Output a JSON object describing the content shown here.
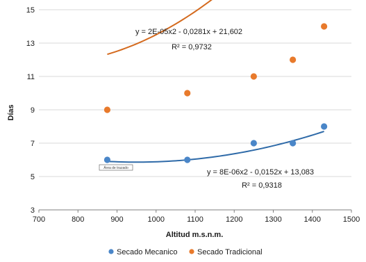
{
  "chart_data": {
    "type": "scatter",
    "xlabel": "Altitud m.s.n.m.",
    "ylabel": "Días",
    "xlim": [
      700,
      1500
    ],
    "ylim": [
      3,
      15
    ],
    "x_ticks": [
      700,
      800,
      900,
      1000,
      1100,
      1200,
      1300,
      1400,
      1500
    ],
    "y_ticks": [
      3,
      5,
      7,
      9,
      11,
      13,
      15
    ],
    "grid": "horizontal",
    "legend_position": "bottom",
    "series": [
      {
        "name": "Secado Mecanico",
        "color": "#4a86c8",
        "x": [
          875,
          1080,
          1250,
          1350,
          1430
        ],
        "y": [
          6,
          6,
          7,
          7,
          8
        ],
        "trendline": {
          "type": "polynomial",
          "coefficients": [
            8e-06,
            -0.0152,
            13.083
          ],
          "color": "#2e6aa8",
          "equation": "y = 8E-06x2 - 0,0152x + 13,083",
          "r2": "R² = 0,9318"
        }
      },
      {
        "name": "Secado Tradicional",
        "color": "#e87a2c",
        "x": [
          875,
          1080,
          1250,
          1350,
          1430
        ],
        "y": [
          9,
          10,
          11,
          12,
          14
        ],
        "trendline": {
          "type": "polynomial",
          "coefficients": [
            2e-05,
            -0.0281,
            21.602
          ],
          "color": "#d46a1e",
          "equation": "y = 2E-05x2 - 0,0281x + 21,602",
          "r2": "R² = 0,9732"
        }
      }
    ],
    "annotations": {
      "plot_area_tag": "Área de trazado"
    }
  }
}
